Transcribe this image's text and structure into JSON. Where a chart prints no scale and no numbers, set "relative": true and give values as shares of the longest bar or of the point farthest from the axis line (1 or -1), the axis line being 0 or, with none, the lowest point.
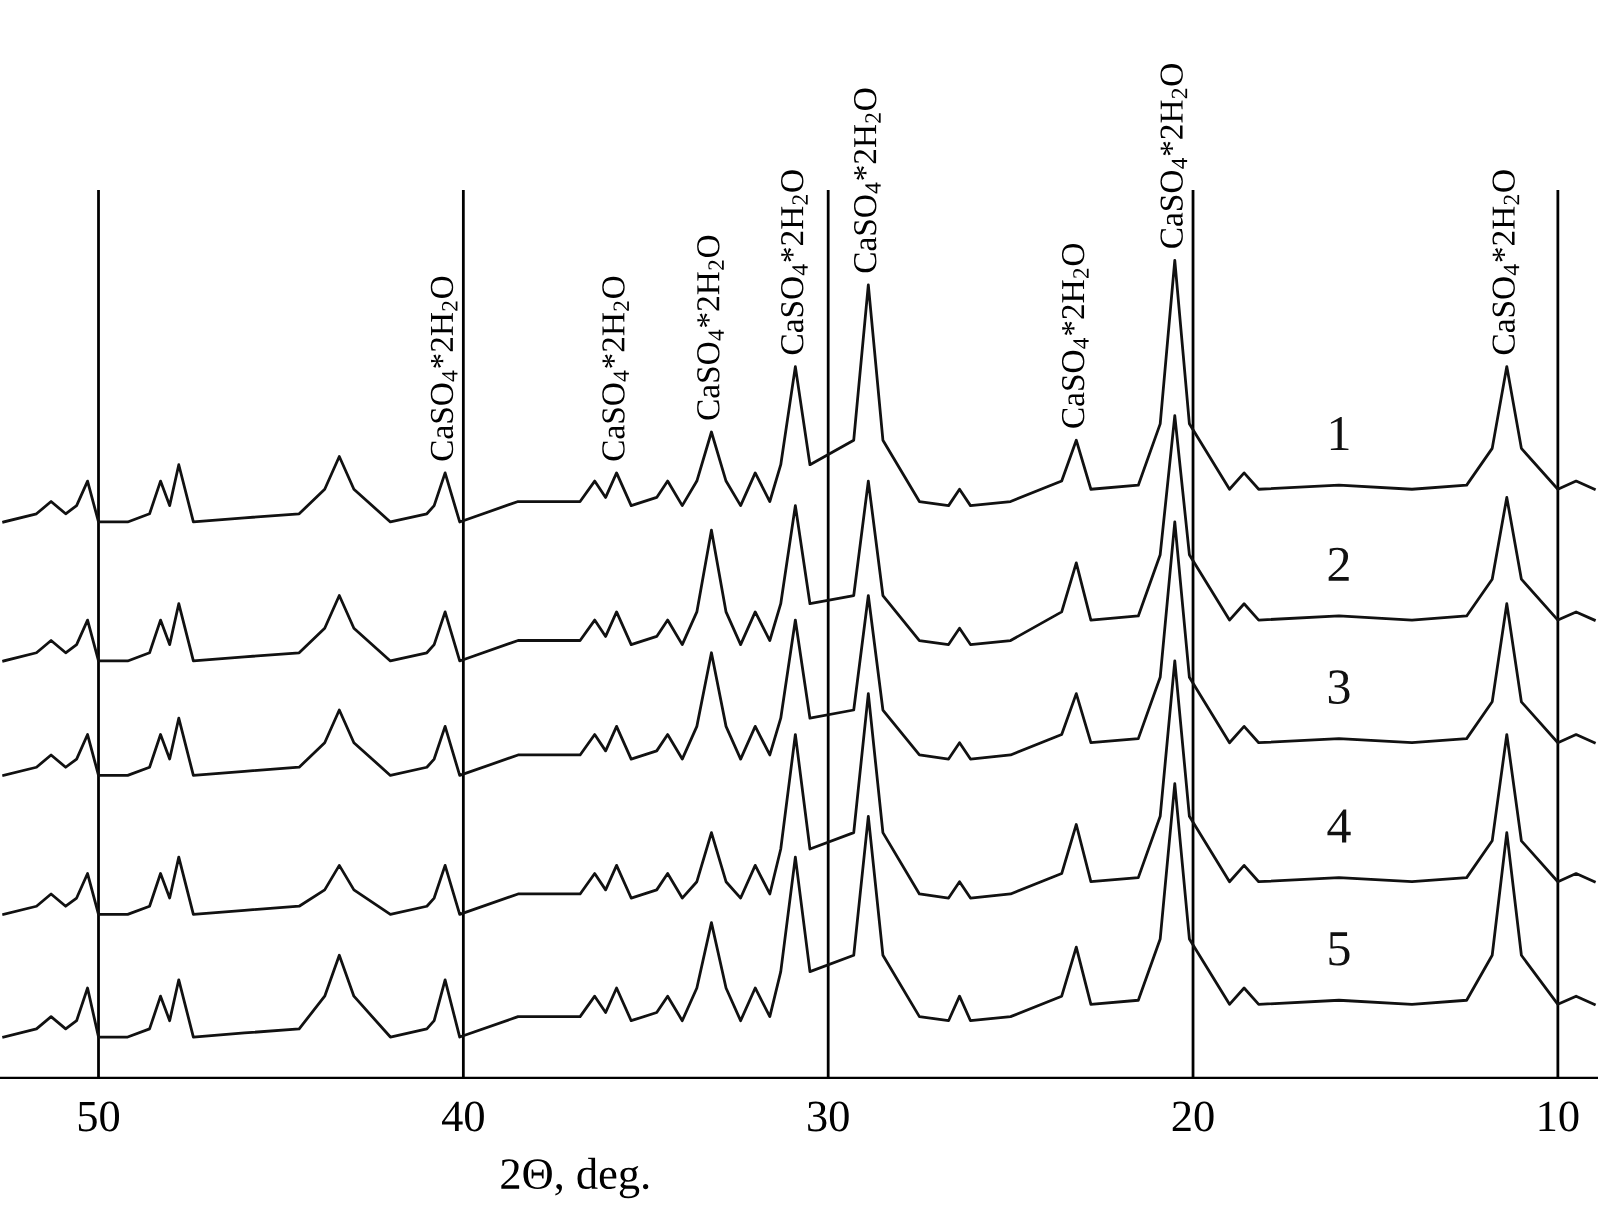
{
  "chart_data": {
    "type": "line",
    "relative": true,
    "xlabel": "2Θ, deg.",
    "x": [
      52.6,
      51.7,
      51.3,
      50.9,
      50.6,
      50.3,
      50.0,
      49.2,
      48.6,
      48.3,
      48.05,
      47.8,
      47.4,
      46.0,
      44.5,
      43.8,
      43.4,
      43.0,
      42.0,
      41.0,
      40.8,
      40.5,
      40.1,
      38.5,
      36.8,
      36.4,
      36.1,
      35.8,
      35.4,
      34.7,
      34.4,
      34.0,
      33.6,
      33.2,
      32.8,
      32.4,
      32.0,
      31.6,
      31.3,
      30.9,
      30.5,
      29.3,
      28.9,
      28.5,
      27.5,
      26.7,
      26.4,
      26.1,
      25.0,
      23.6,
      23.2,
      22.8,
      21.5,
      20.9,
      20.5,
      20.1,
      19.0,
      18.6,
      18.2,
      16.0,
      14.0,
      12.5,
      11.8,
      11.4,
      11.0,
      10.0,
      9.5,
      9.0
    ],
    "xlim": [
      52.7,
      8.9
    ],
    "xticks": [
      50,
      40,
      30,
      20,
      10
    ],
    "grid": "x",
    "legend": false,
    "series": [
      {
        "name": "1",
        "color": "#111111",
        "values": [
          0.68,
          0.69,
          0.705,
          0.69,
          0.7,
          0.73,
          0.68,
          0.68,
          0.69,
          0.73,
          0.7,
          0.75,
          0.68,
          0.685,
          0.69,
          0.72,
          0.76,
          0.72,
          0.68,
          0.69,
          0.7,
          0.74,
          0.68,
          0.705,
          0.705,
          0.73,
          0.71,
          0.74,
          0.7,
          0.71,
          0.73,
          0.7,
          0.73,
          0.79,
          0.73,
          0.7,
          0.74,
          0.705,
          0.75,
          0.87,
          0.75,
          0.78,
          0.97,
          0.78,
          0.705,
          0.7,
          0.72,
          0.7,
          0.705,
          0.73,
          0.78,
          0.72,
          0.725,
          0.8,
          1.0,
          0.8,
          0.72,
          0.74,
          0.72,
          0.725,
          0.72,
          0.725,
          0.77,
          0.87,
          0.77,
          0.72,
          0.73,
          0.72
        ]
      },
      {
        "name": "2",
        "color": "#111111",
        "values": [
          0.51,
          0.52,
          0.535,
          0.52,
          0.53,
          0.56,
          0.51,
          0.51,
          0.52,
          0.56,
          0.53,
          0.58,
          0.51,
          0.515,
          0.52,
          0.55,
          0.59,
          0.55,
          0.51,
          0.52,
          0.53,
          0.57,
          0.51,
          0.535,
          0.535,
          0.56,
          0.54,
          0.57,
          0.53,
          0.54,
          0.56,
          0.53,
          0.57,
          0.67,
          0.57,
          0.53,
          0.57,
          0.535,
          0.58,
          0.7,
          0.58,
          0.59,
          0.73,
          0.59,
          0.535,
          0.53,
          0.55,
          0.53,
          0.535,
          0.57,
          0.63,
          0.56,
          0.565,
          0.64,
          0.81,
          0.64,
          0.56,
          0.58,
          0.56,
          0.565,
          0.56,
          0.565,
          0.61,
          0.71,
          0.61,
          0.56,
          0.57,
          0.56
        ]
      },
      {
        "name": "3",
        "color": "#111111",
        "values": [
          0.37,
          0.38,
          0.395,
          0.38,
          0.39,
          0.42,
          0.37,
          0.37,
          0.38,
          0.42,
          0.39,
          0.44,
          0.37,
          0.375,
          0.38,
          0.41,
          0.45,
          0.41,
          0.37,
          0.38,
          0.39,
          0.43,
          0.37,
          0.395,
          0.395,
          0.42,
          0.4,
          0.43,
          0.39,
          0.4,
          0.42,
          0.39,
          0.43,
          0.52,
          0.43,
          0.39,
          0.43,
          0.395,
          0.44,
          0.56,
          0.44,
          0.45,
          0.59,
          0.45,
          0.395,
          0.39,
          0.41,
          0.39,
          0.395,
          0.42,
          0.47,
          0.41,
          0.415,
          0.49,
          0.68,
          0.49,
          0.41,
          0.43,
          0.41,
          0.415,
          0.41,
          0.415,
          0.46,
          0.58,
          0.46,
          0.41,
          0.42,
          0.41
        ]
      },
      {
        "name": "4",
        "color": "#111111",
        "values": [
          0.2,
          0.21,
          0.225,
          0.21,
          0.22,
          0.25,
          0.2,
          0.2,
          0.21,
          0.25,
          0.22,
          0.27,
          0.2,
          0.205,
          0.21,
          0.23,
          0.26,
          0.23,
          0.2,
          0.21,
          0.22,
          0.26,
          0.2,
          0.225,
          0.225,
          0.25,
          0.23,
          0.26,
          0.22,
          0.23,
          0.25,
          0.22,
          0.24,
          0.3,
          0.24,
          0.22,
          0.26,
          0.225,
          0.28,
          0.42,
          0.28,
          0.3,
          0.47,
          0.3,
          0.225,
          0.22,
          0.24,
          0.22,
          0.225,
          0.25,
          0.31,
          0.24,
          0.245,
          0.32,
          0.51,
          0.32,
          0.24,
          0.26,
          0.24,
          0.245,
          0.24,
          0.245,
          0.29,
          0.42,
          0.29,
          0.24,
          0.25,
          0.24
        ]
      },
      {
        "name": "5",
        "color": "#111111",
        "values": [
          0.05,
          0.06,
          0.075,
          0.06,
          0.07,
          0.11,
          0.05,
          0.05,
          0.06,
          0.1,
          0.07,
          0.12,
          0.05,
          0.055,
          0.06,
          0.1,
          0.15,
          0.1,
          0.05,
          0.06,
          0.07,
          0.12,
          0.05,
          0.075,
          0.075,
          0.1,
          0.08,
          0.11,
          0.07,
          0.08,
          0.1,
          0.07,
          0.11,
          0.19,
          0.11,
          0.07,
          0.11,
          0.075,
          0.13,
          0.27,
          0.13,
          0.15,
          0.32,
          0.15,
          0.075,
          0.07,
          0.1,
          0.07,
          0.075,
          0.1,
          0.16,
          0.09,
          0.095,
          0.17,
          0.36,
          0.17,
          0.09,
          0.11,
          0.09,
          0.095,
          0.09,
          0.095,
          0.15,
          0.3,
          0.15,
          0.09,
          0.1,
          0.09
        ]
      }
    ],
    "annotations": [
      {
        "text": "CaSO$_{4}$*2H$_{2}$O",
        "x": 40.5,
        "y": 0.74
      },
      {
        "text": "CaSO$_{4}$*2H$_{2}$O",
        "x": 35.8,
        "y": 0.74
      },
      {
        "text": "CaSO$_{4}$*2H$_{2}$O",
        "x": 33.2,
        "y": 0.79
      },
      {
        "text": "CaSO$_{4}$*2H$_{2}$O",
        "x": 30.9,
        "y": 0.87
      },
      {
        "text": "CaSO$_{4}$*2H$_{2}$O",
        "x": 28.9,
        "y": 0.97
      },
      {
        "text": "CaSO$_{4}$*2H$_{2}$O",
        "x": 23.2,
        "y": 0.78
      },
      {
        "text": "CaSO$_{4}$*2H$_{2}$O",
        "x": 20.5,
        "y": 1.0
      },
      {
        "text": "CaSO$_{4}$*2H$_{2}$O",
        "x": 11.4,
        "y": 0.87
      }
    ]
  }
}
